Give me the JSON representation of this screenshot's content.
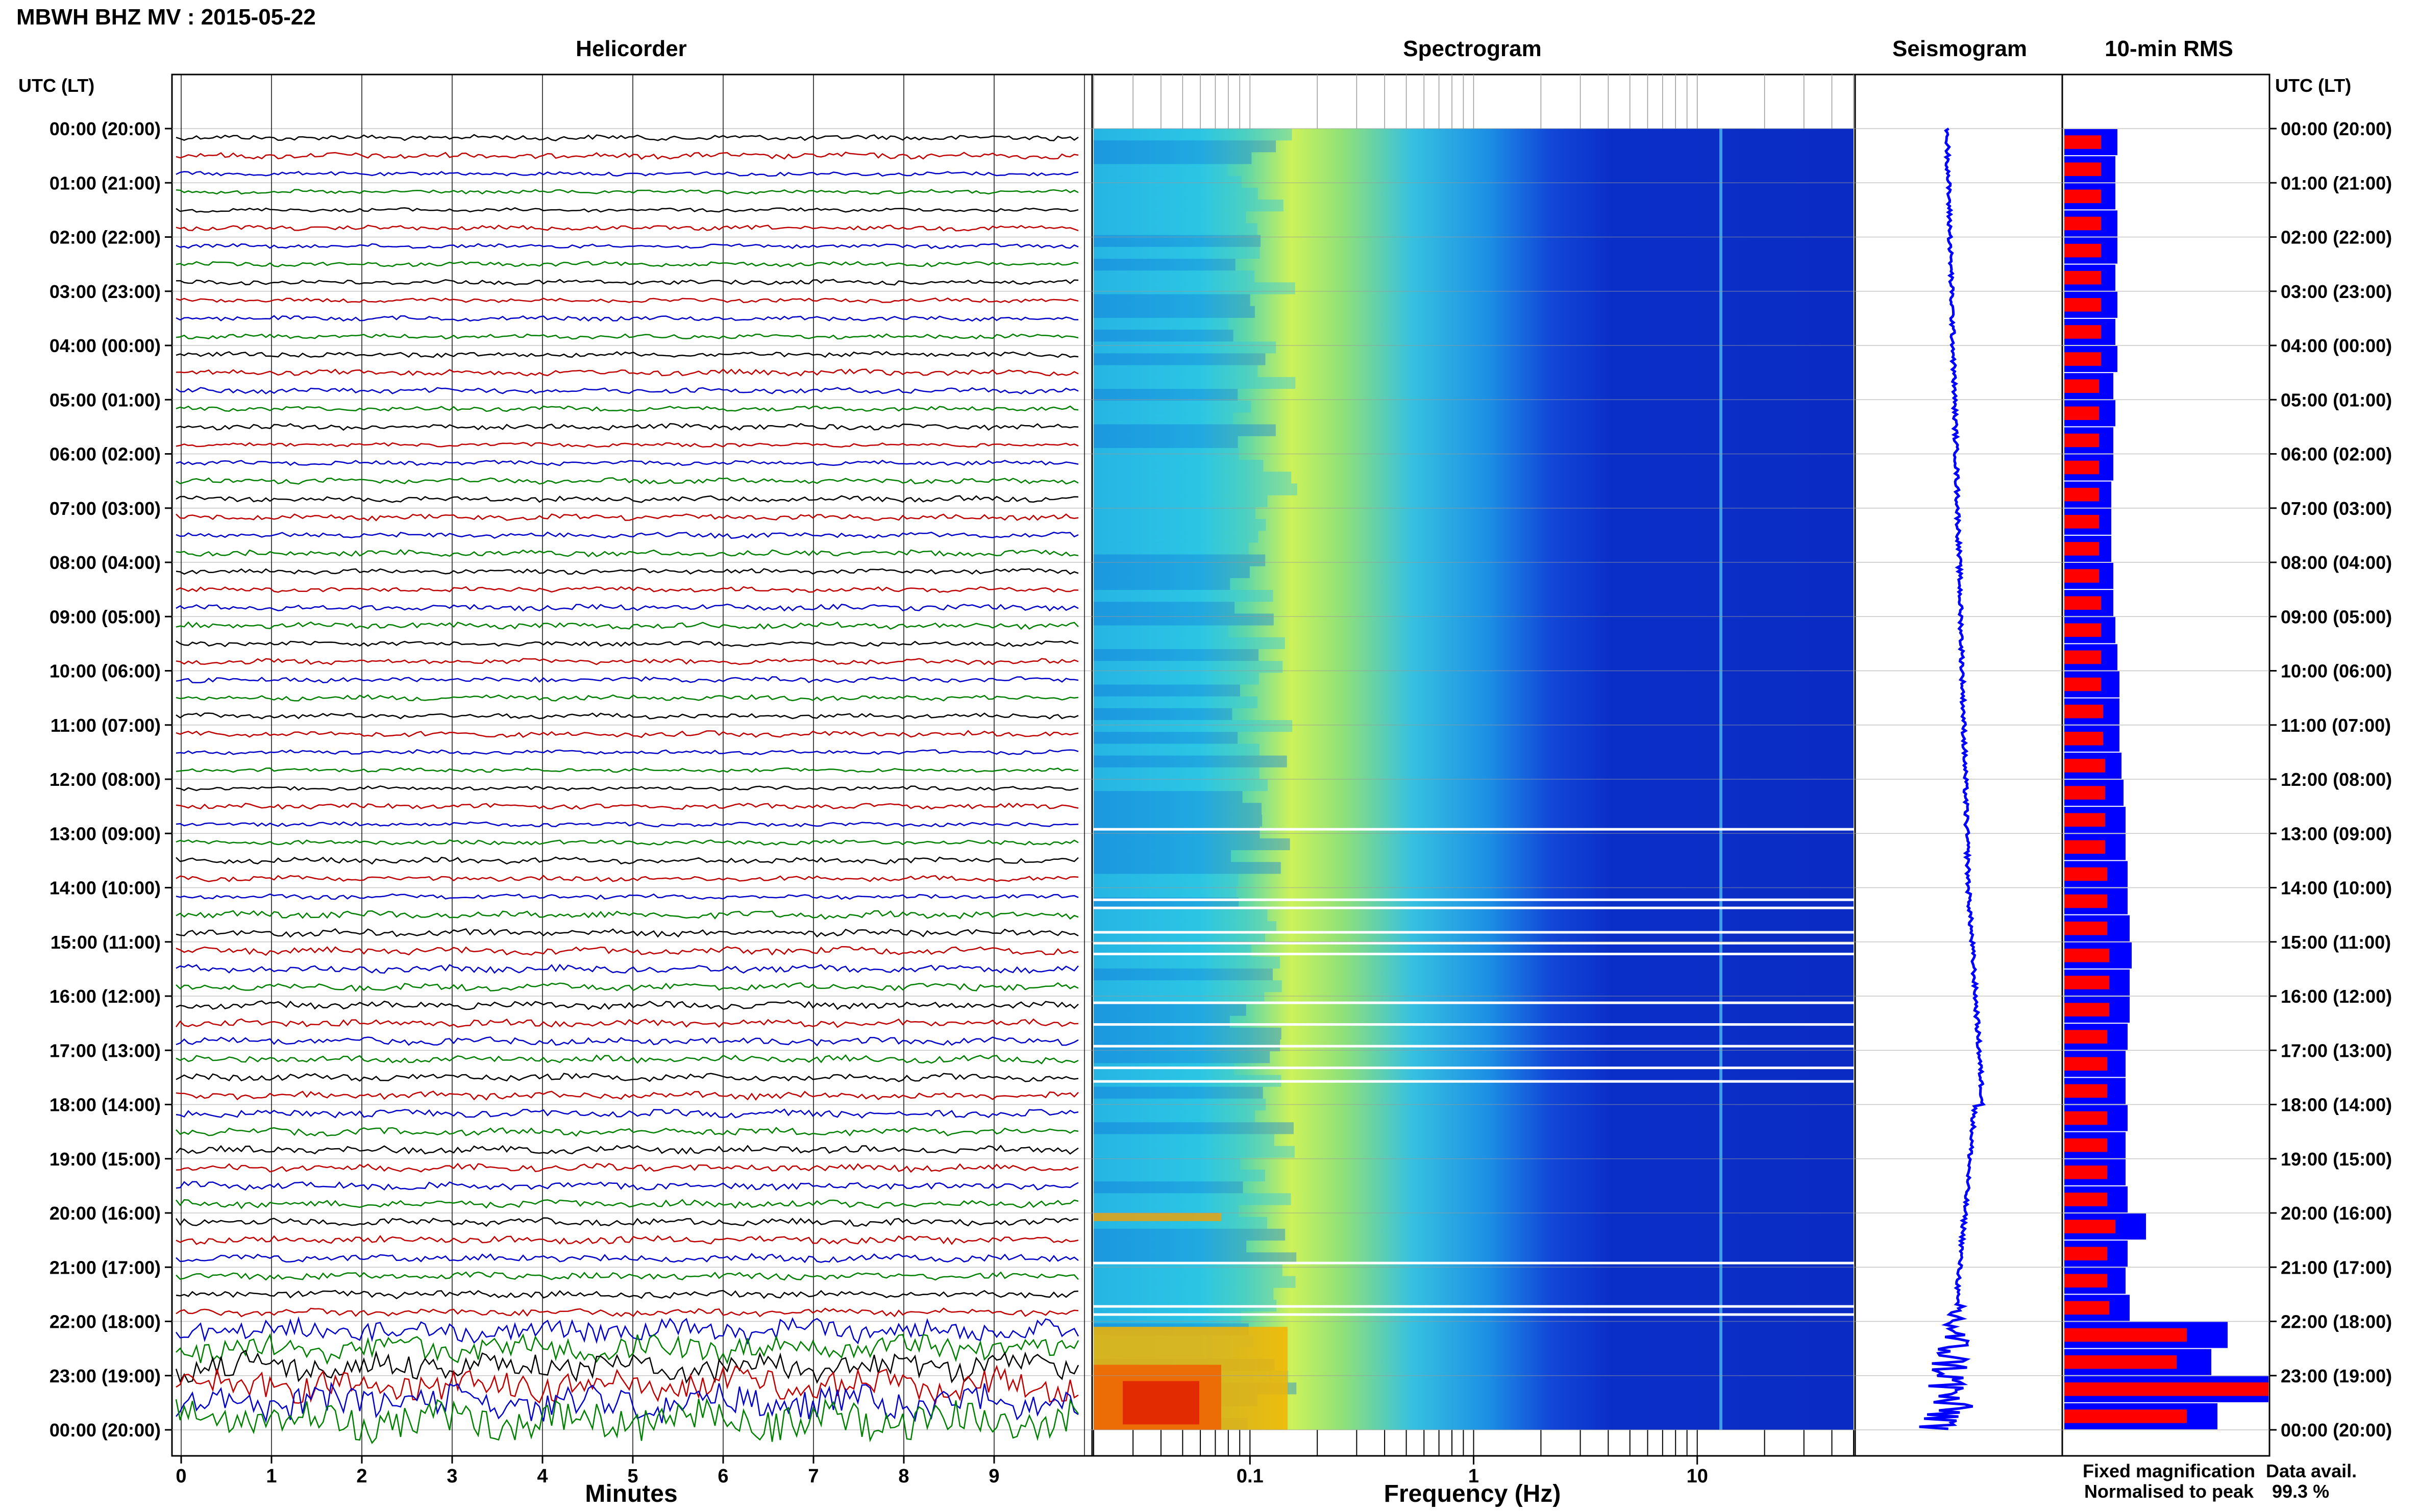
{
  "title": "MBWH BHZ MV : 2015-05-22",
  "panels": {
    "helicorder": "Helicorder",
    "spectrogram": "Spectrogram",
    "seismogram": "Seismogram",
    "rms": "10-min RMS"
  },
  "time_axis": {
    "header": "UTC (LT)",
    "labels": [
      "00:00 (20:00)",
      "01:00 (21:00)",
      "02:00 (22:00)",
      "03:00 (23:00)",
      "04:00 (00:00)",
      "05:00 (01:00)",
      "06:00 (02:00)",
      "07:00 (03:00)",
      "08:00 (04:00)",
      "09:00 (05:00)",
      "10:00 (06:00)",
      "11:00 (07:00)",
      "12:00 (08:00)",
      "13:00 (09:00)",
      "14:00 (10:00)",
      "15:00 (11:00)",
      "16:00 (12:00)",
      "17:00 (13:00)",
      "18:00 (14:00)",
      "19:00 (15:00)",
      "20:00 (16:00)",
      "21:00 (17:00)",
      "22:00 (18:00)",
      "23:00 (19:00)",
      "00:00 (20:00)"
    ]
  },
  "helicorder_axis": {
    "label": "Minutes",
    "ticks": [
      "0",
      "1",
      "2",
      "3",
      "4",
      "5",
      "6",
      "7",
      "8",
      "9"
    ],
    "trace_colors": [
      "#000000",
      "#c00000",
      "#0000c8",
      "#008000"
    ]
  },
  "spectrogram_axis": {
    "label": "Frequency (Hz)",
    "ticks": [
      "0.1",
      "1",
      "10"
    ]
  },
  "legend": {
    "fixed": "Fixed magnification",
    "normalised": "Normalised to peak",
    "fixed_color": "#0000ff",
    "normalised_color": "#ff0000",
    "avail_label": "Data avail.",
    "avail_value": "99.3 %"
  },
  "chart_data": {
    "type": "heatmap",
    "panels": [
      "Helicorder",
      "Spectrogram",
      "Seismogram",
      "10-min RMS"
    ],
    "time_range_utc": [
      "2015-05-22 00:00",
      "2015-05-23 00:00"
    ],
    "helicorder_minutes_range": [
      0,
      10
    ],
    "spectrogram_freq_range_hz": [
      0.02,
      50
    ],
    "spectrogram_freq_scale": "log",
    "data_availability_percent": 99.3,
    "rms_10min_fixed_hours": [
      0,
      0.5,
      1,
      1.5,
      2,
      2.5,
      3,
      3.5,
      4,
      4.5,
      5,
      5.5,
      6,
      6.5,
      7,
      7.5,
      8,
      8.5,
      9,
      9.5,
      10,
      10.5,
      11,
      11.5,
      12,
      12.5,
      13,
      13.5,
      14,
      14.5,
      15,
      15.5,
      16,
      16.5,
      17,
      17.5,
      18,
      18.5,
      19,
      19.5,
      20,
      20.5,
      21,
      21.5,
      22,
      22.5,
      23,
      23.5
    ],
    "rms_10min_fixed_relative": [
      0.26,
      0.25,
      0.25,
      0.26,
      0.26,
      0.25,
      0.26,
      0.25,
      0.26,
      0.24,
      0.25,
      0.24,
      0.24,
      0.23,
      0.23,
      0.23,
      0.24,
      0.24,
      0.25,
      0.26,
      0.27,
      0.27,
      0.27,
      0.28,
      0.29,
      0.3,
      0.3,
      0.31,
      0.31,
      0.32,
      0.33,
      0.32,
      0.32,
      0.31,
      0.3,
      0.3,
      0.31,
      0.3,
      0.3,
      0.31,
      0.4,
      0.31,
      0.3,
      0.32,
      0.8,
      0.72,
      1.0,
      0.75
    ],
    "rms_10min_normalised_relative": [
      0.18,
      0.18,
      0.18,
      0.18,
      0.18,
      0.18,
      0.18,
      0.18,
      0.18,
      0.17,
      0.17,
      0.17,
      0.17,
      0.17,
      0.17,
      0.17,
      0.17,
      0.18,
      0.18,
      0.18,
      0.18,
      0.19,
      0.19,
      0.2,
      0.2,
      0.2,
      0.2,
      0.21,
      0.21,
      0.21,
      0.22,
      0.22,
      0.22,
      0.21,
      0.21,
      0.21,
      0.21,
      0.21,
      0.21,
      0.21,
      0.25,
      0.21,
      0.21,
      0.22,
      0.6,
      0.55,
      1.0,
      0.6
    ]
  }
}
